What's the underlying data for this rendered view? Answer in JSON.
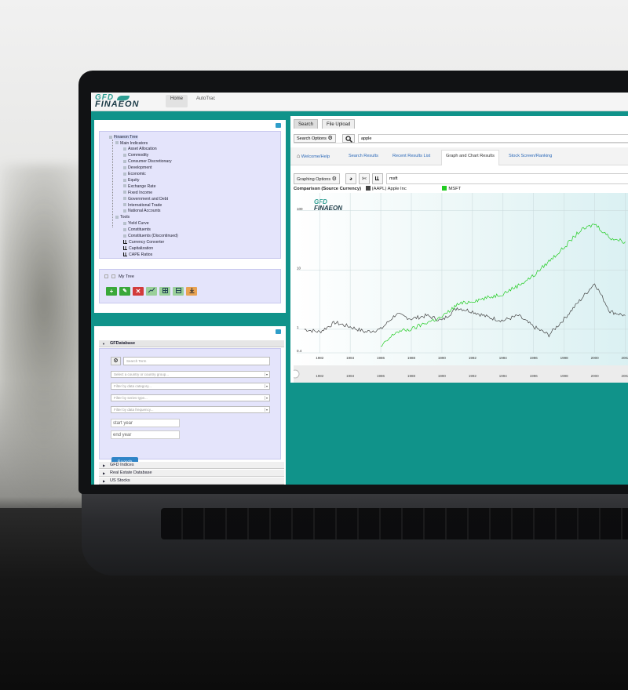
{
  "topbar": {
    "logo_top": "GFD",
    "logo_bottom": "FINAEON",
    "nav": [
      "Home",
      "AutoTrac"
    ]
  },
  "tree": {
    "title": "Finaeon Tree",
    "items": [
      {
        "label": "Main Indicators",
        "level": 1,
        "icon": "folder"
      },
      {
        "label": "Asset Allocation",
        "level": 2,
        "icon": "folder"
      },
      {
        "label": "Commodity",
        "level": 2,
        "icon": "folder"
      },
      {
        "label": "Consumer Discretionary",
        "level": 2,
        "icon": "folder"
      },
      {
        "label": "Development",
        "level": 2,
        "icon": "folder"
      },
      {
        "label": "Economic",
        "level": 2,
        "icon": "folder"
      },
      {
        "label": "Equity",
        "level": 2,
        "icon": "folder"
      },
      {
        "label": "Exchange Rate",
        "level": 2,
        "icon": "folder"
      },
      {
        "label": "Fixed Income",
        "level": 2,
        "icon": "folder"
      },
      {
        "label": "Government and Debt",
        "level": 2,
        "icon": "folder"
      },
      {
        "label": "International Trade",
        "level": 2,
        "icon": "folder"
      },
      {
        "label": "National Accounts",
        "level": 2,
        "icon": "folder"
      },
      {
        "label": "Tools",
        "level": 1,
        "icon": "folder"
      },
      {
        "label": "Yield Curve",
        "level": 2,
        "icon": "folder"
      },
      {
        "label": "Constituents",
        "level": 2,
        "icon": "folder"
      },
      {
        "label": "Constituents (Discontinued)",
        "level": 2,
        "icon": "folder"
      },
      {
        "label": "Currency Converter",
        "level": 2,
        "icon": "chart"
      },
      {
        "label": "Capitalization",
        "level": 2,
        "icon": "chart"
      },
      {
        "label": "CAPE Ratios",
        "level": 2,
        "icon": "chart"
      }
    ]
  },
  "mytree": {
    "label": "My Tree",
    "tools": [
      "+",
      "✎",
      "✕",
      "",
      "",
      "",
      ""
    ]
  },
  "database": {
    "header": "GFDatabase",
    "search_placeholder": "Search Term",
    "country_placeholder": "Select a country or country group...",
    "category_placeholder": "Filter by data category...",
    "series_placeholder": "Filter by series type...",
    "subcategory_placeholder": "Filter by data frequency...",
    "start_year": "start year",
    "end_year": "end year",
    "search_button": "Search",
    "more_sections": [
      "GFD Indices",
      "Real Estate Database",
      "US Stocks"
    ]
  },
  "main": {
    "tabs": [
      "Search",
      "File Upload"
    ],
    "search_options": "Search Options",
    "search_value": "apple",
    "subtabs": [
      "Welcome/Help",
      "Search Results",
      "Recent Results List",
      "Graph and Chart Results",
      "Stock Screen/Ranking"
    ],
    "graphing_options": "Graphing Options",
    "graph_field": "msft"
  },
  "chart_data": {
    "type": "line",
    "title": "Comparison (Source Currency)",
    "series": [
      {
        "name": "(AAPL) Apple Inc",
        "color": "#444444",
        "x": [
          1981,
          1982,
          1983,
          1984,
          1985,
          1986,
          1987,
          1988,
          1989,
          1990,
          1991,
          1992,
          1993,
          1994,
          1995,
          1996,
          1997,
          1998,
          1999,
          2000,
          2001,
          2002
        ],
        "values": [
          1.0,
          0.9,
          1.3,
          1.1,
          0.9,
          1.0,
          1.8,
          1.5,
          1.7,
          1.4,
          2.3,
          2.0,
          1.6,
          1.4,
          1.7,
          1.1,
          0.8,
          1.5,
          3.0,
          6.0,
          2.0,
          1.7
        ]
      },
      {
        "name": "MSFT",
        "color": "#22cc22",
        "x": [
          1986,
          1987,
          1988,
          1989,
          1990,
          1991,
          1992,
          1993,
          1994,
          1995,
          1996,
          1997,
          1998,
          1999,
          2000,
          2001,
          2002
        ],
        "values": [
          0.5,
          0.9,
          1.0,
          1.3,
          1.6,
          2.6,
          3.0,
          3.4,
          4.0,
          5.5,
          8.0,
          14,
          24,
          45,
          60,
          35,
          30
        ]
      }
    ],
    "y_ticks": [
      "0.4",
      "1",
      "10",
      "100"
    ],
    "y_scale": "log",
    "ylim": [
      0.4,
      200
    ],
    "x_ticks": [
      "1982",
      "1984",
      "1986",
      "1988",
      "1990",
      "1992",
      "1994",
      "1996",
      "1998",
      "2000",
      "2002"
    ],
    "xlim": [
      1980.5,
      2003
    ],
    "watermark_top": "GFD",
    "watermark_bottom": "FINAEON",
    "grid": true
  }
}
